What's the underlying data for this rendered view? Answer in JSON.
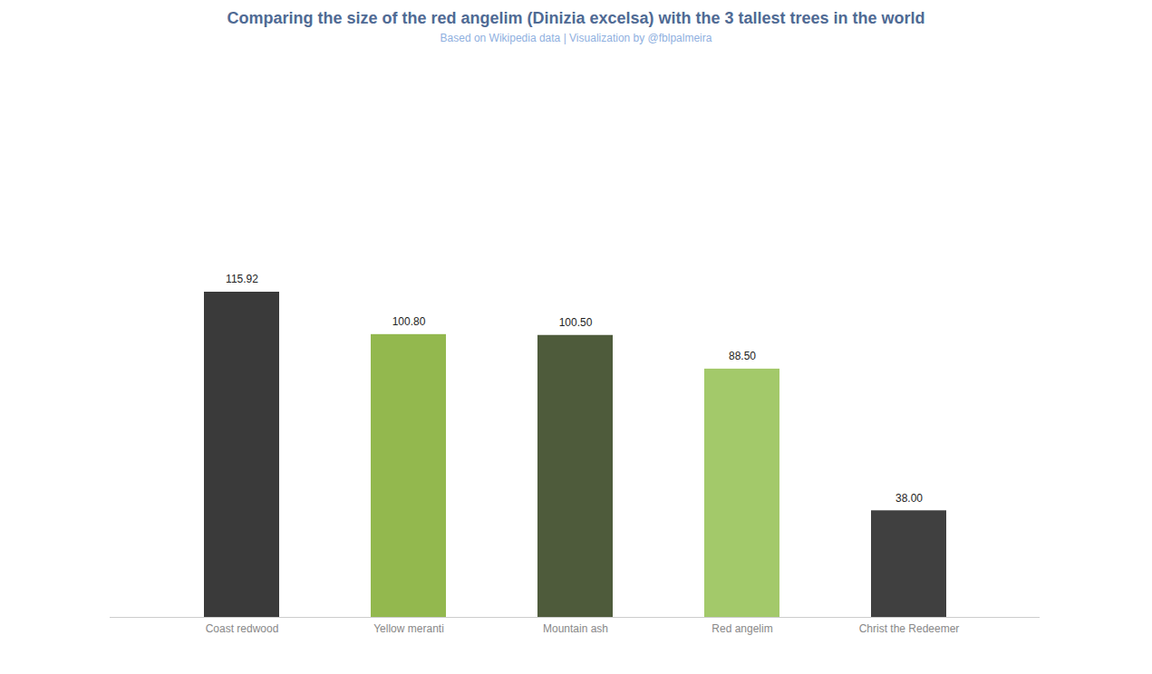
{
  "chart_data": {
    "type": "bar",
    "title": "Comparing the size of the red angelim (Dinizia excelsa) with the 3 tallest trees in the world",
    "subtitle": "Based on Wikipedia data | Visualization by @fblpalmeira",
    "categories": [
      "Coast redwood",
      "Yellow meranti",
      "Mountain ash",
      "Red angelim",
      "Christ the Redeemer"
    ],
    "values": [
      115.92,
      100.8,
      100.5,
      88.5,
      38
    ],
    "value_labels": [
      "115.92",
      "100.80",
      "100.50",
      "88.50",
      "38.00"
    ],
    "colors": [
      "#3a3a3a",
      "#93b84e",
      "#4e5b3b",
      "#a3c96a",
      "#404040"
    ],
    "data_labels": true,
    "tick_labels": "x"
  }
}
